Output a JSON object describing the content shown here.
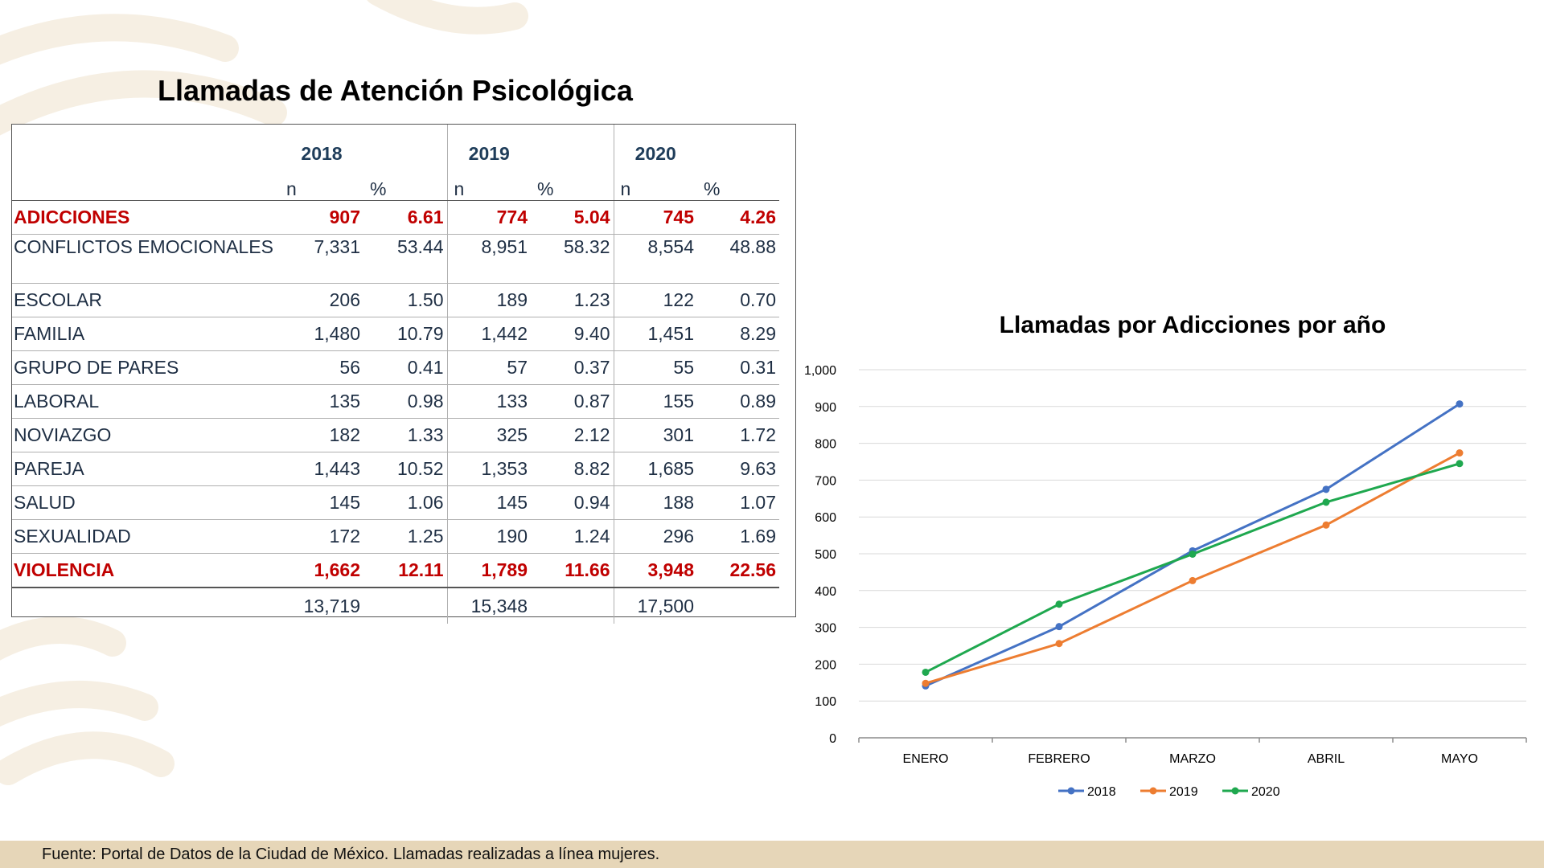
{
  "title": "Llamadas de Atención Psicológica",
  "table": {
    "years": [
      "2018",
      "2019",
      "2020"
    ],
    "sub_headers": [
      "n",
      "%",
      "n",
      "%",
      "n",
      "%"
    ],
    "rows": [
      {
        "label": "ADICCIONES",
        "highlight": true,
        "values": [
          "907",
          "6.61",
          "774",
          "5.04",
          "745",
          "4.26"
        ]
      },
      {
        "label": "CONFLICTOS EMOCIONALES",
        "highlight": false,
        "values": [
          "7,331",
          "53.44",
          "8,951",
          "58.32",
          "8,554",
          "48.88"
        ]
      },
      {
        "label": "ESCOLAR",
        "highlight": false,
        "values": [
          "206",
          "1.50",
          "189",
          "1.23",
          "122",
          "0.70"
        ]
      },
      {
        "label": "FAMILIA",
        "highlight": false,
        "values": [
          "1,480",
          "10.79",
          "1,442",
          "9.40",
          "1,451",
          "8.29"
        ]
      },
      {
        "label": "GRUPO DE PARES",
        "highlight": false,
        "values": [
          "56",
          "0.41",
          "57",
          "0.37",
          "55",
          "0.31"
        ]
      },
      {
        "label": "LABORAL",
        "highlight": false,
        "values": [
          "135",
          "0.98",
          "133",
          "0.87",
          "155",
          "0.89"
        ]
      },
      {
        "label": "NOVIAZGO",
        "highlight": false,
        "values": [
          "182",
          "1.33",
          "325",
          "2.12",
          "301",
          "1.72"
        ]
      },
      {
        "label": "PAREJA",
        "highlight": false,
        "values": [
          "1,443",
          "10.52",
          "1,353",
          "8.82",
          "1,685",
          "9.63"
        ]
      },
      {
        "label": "SALUD",
        "highlight": false,
        "values": [
          "145",
          "1.06",
          "145",
          "0.94",
          "188",
          "1.07"
        ]
      },
      {
        "label": "SEXUALIDAD",
        "highlight": false,
        "values": [
          "172",
          "1.25",
          "190",
          "1.24",
          "296",
          "1.69"
        ]
      },
      {
        "label": "VIOLENCIA",
        "highlight": true,
        "values": [
          "1,662",
          "12.11",
          "1,789",
          "11.66",
          "3,948",
          "22.56"
        ]
      }
    ],
    "totals": [
      "13,719",
      "15,348",
      "17,500"
    ]
  },
  "chart_data": {
    "type": "line",
    "title": "Llamadas por Adicciones por año",
    "categories": [
      "ENERO",
      "FEBRERO",
      "MARZO",
      "ABRIL",
      "MAYO"
    ],
    "series": [
      {
        "name": "2018",
        "color": "#4472c4",
        "values": [
          141,
          302,
          508,
          675,
          907
        ]
      },
      {
        "name": "2019",
        "color": "#ed7d31",
        "values": [
          148,
          256,
          427,
          578,
          774
        ]
      },
      {
        "name": "2020",
        "color": "#1fa84f",
        "values": [
          178,
          363,
          499,
          640,
          745
        ]
      }
    ],
    "ylim": [
      0,
      1000
    ],
    "yticks": [
      "0",
      "100",
      "200",
      "300",
      "400",
      "500",
      "600",
      "700",
      "800",
      "900",
      "1,000"
    ],
    "grid": true,
    "legend": "bottom"
  },
  "footer": "Fuente: Portal de Datos de la Ciudad de México. Llamadas realizadas a línea mujeres."
}
